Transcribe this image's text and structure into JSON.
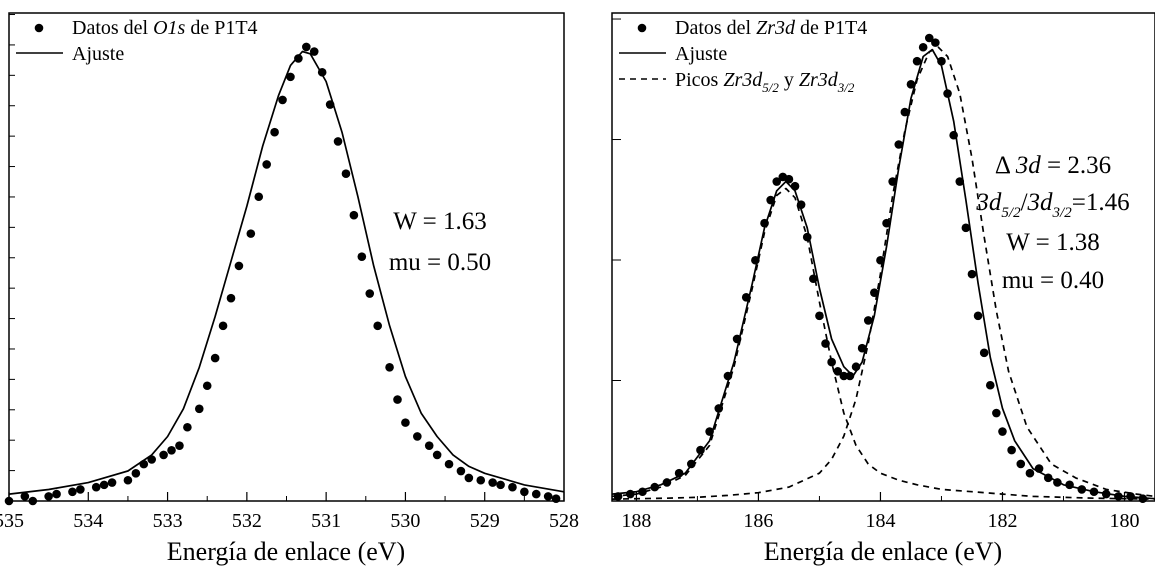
{
  "chart_data": [
    {
      "type": "scatter",
      "title": "",
      "xlabel": "Energía de enlace (eV)",
      "ylabel": "",
      "xlim": [
        535,
        528
      ],
      "ylim": [
        0,
        1.0
      ],
      "x_reversed": true,
      "xticks": [
        535,
        534,
        533,
        532,
        531,
        530,
        529,
        528
      ],
      "xtick_labels": [
        "535",
        "534",
        "533",
        "532",
        "531",
        "530",
        "529",
        "528"
      ],
      "legend": {
        "placement": "top-left",
        "entries": [
          {
            "kind": "dots",
            "pre": "Datos del ",
            "ital": "O1s",
            "post": " de P1T4"
          },
          {
            "kind": "solid",
            "pre": "Ajuste"
          }
        ]
      },
      "annotations": [
        "W = 1.63",
        "mu = 0.50"
      ],
      "series": [
        {
          "name": "Datos del O1s de P1T4",
          "kind": "points",
          "x": [
            535.0,
            534.8,
            534.7,
            534.5,
            534.4,
            534.2,
            534.1,
            533.9,
            533.8,
            533.7,
            533.5,
            533.4,
            533.3,
            533.2,
            533.05,
            532.95,
            532.85,
            532.75,
            532.6,
            532.5,
            532.4,
            532.3,
            532.2,
            532.1,
            531.95,
            531.85,
            531.75,
            531.65,
            531.55,
            531.45,
            531.35,
            531.25,
            531.15,
            531.05,
            530.95,
            530.85,
            530.75,
            530.65,
            530.55,
            530.45,
            530.35,
            530.2,
            530.1,
            530.0,
            529.85,
            529.7,
            529.6,
            529.45,
            529.3,
            529.2,
            529.05,
            528.9,
            528.8,
            528.65,
            528.5,
            528.35,
            528.2,
            528.1
          ],
          "y": [
            0.0,
            0.01,
            0.0,
            0.01,
            0.015,
            0.02,
            0.025,
            0.03,
            0.035,
            0.04,
            0.045,
            0.06,
            0.08,
            0.09,
            0.1,
            0.11,
            0.12,
            0.16,
            0.2,
            0.25,
            0.31,
            0.38,
            0.44,
            0.51,
            0.58,
            0.66,
            0.73,
            0.8,
            0.87,
            0.92,
            0.96,
            0.985,
            0.975,
            0.93,
            0.86,
            0.78,
            0.71,
            0.62,
            0.53,
            0.45,
            0.38,
            0.29,
            0.22,
            0.17,
            0.14,
            0.12,
            0.1,
            0.08,
            0.065,
            0.05,
            0.045,
            0.04,
            0.035,
            0.03,
            0.02,
            0.015,
            0.01,
            0.005
          ]
        },
        {
          "name": "Ajuste",
          "kind": "solid",
          "x": [
            535.0,
            534.5,
            534.0,
            533.5,
            533.2,
            533.0,
            532.8,
            532.6,
            532.4,
            532.2,
            532.0,
            531.8,
            531.6,
            531.45,
            531.3,
            531.2,
            531.0,
            530.8,
            530.6,
            530.4,
            530.2,
            530.0,
            529.8,
            529.6,
            529.4,
            529.2,
            529.0,
            528.5,
            528.0
          ],
          "y": [
            0.015,
            0.025,
            0.04,
            0.065,
            0.1,
            0.14,
            0.2,
            0.29,
            0.4,
            0.52,
            0.64,
            0.77,
            0.88,
            0.945,
            0.975,
            0.97,
            0.91,
            0.8,
            0.66,
            0.51,
            0.38,
            0.27,
            0.19,
            0.14,
            0.1,
            0.075,
            0.06,
            0.035,
            0.02
          ]
        }
      ]
    },
    {
      "type": "scatter",
      "title": "",
      "xlabel": "Energía de enlace (eV)",
      "ylabel": "",
      "xlim": [
        188.4,
        179.5
      ],
      "ylim": [
        0,
        1.0
      ],
      "x_reversed": true,
      "xticks": [
        188,
        186,
        184,
        182,
        180
      ],
      "xtick_labels": [
        "188",
        "186",
        "184",
        "182",
        "180"
      ],
      "legend": {
        "placement": "top-left",
        "entries": [
          {
            "kind": "dots",
            "pre": "Datos del ",
            "ital": "Zr3d",
            "post": " de P1T4"
          },
          {
            "kind": "solid",
            "pre": "Ajuste"
          },
          {
            "kind": "dashed",
            "pre": "Picos ",
            "ital": "Zr3d",
            "sub": "5/2",
            "post": " y ",
            "ital2": "Zr3d",
            "sub2": "3/2"
          }
        ]
      },
      "annotations": [
        "Δ 3d = 2.36",
        "3d5/2/3d3/2=1.46",
        "W = 1.38",
        "mu = 0.40"
      ],
      "series": [
        {
          "name": "Datos del Zr3d de P1T4",
          "kind": "points",
          "x": [
            188.3,
            188.1,
            187.9,
            187.7,
            187.5,
            187.3,
            187.1,
            186.95,
            186.8,
            186.65,
            186.5,
            186.35,
            186.2,
            186.05,
            185.9,
            185.8,
            185.7,
            185.6,
            185.5,
            185.4,
            185.3,
            185.2,
            185.1,
            185.0,
            184.9,
            184.8,
            184.7,
            184.6,
            184.5,
            184.4,
            184.3,
            184.2,
            184.1,
            184.0,
            183.9,
            183.8,
            183.7,
            183.6,
            183.5,
            183.4,
            183.3,
            183.2,
            183.1,
            183.0,
            182.9,
            182.8,
            182.7,
            182.6,
            182.5,
            182.4,
            182.3,
            182.2,
            182.1,
            182.0,
            181.85,
            181.7,
            181.55,
            181.4,
            181.25,
            181.1,
            180.9,
            180.7,
            180.5,
            180.3,
            180.1,
            179.9,
            179.7
          ],
          "y": [
            0.01,
            0.015,
            0.02,
            0.03,
            0.04,
            0.06,
            0.08,
            0.11,
            0.15,
            0.2,
            0.27,
            0.35,
            0.44,
            0.52,
            0.6,
            0.65,
            0.69,
            0.7,
            0.695,
            0.68,
            0.64,
            0.57,
            0.48,
            0.4,
            0.34,
            0.3,
            0.28,
            0.27,
            0.27,
            0.29,
            0.33,
            0.39,
            0.45,
            0.52,
            0.6,
            0.69,
            0.77,
            0.84,
            0.9,
            0.95,
            0.98,
            1.0,
            0.99,
            0.95,
            0.88,
            0.79,
            0.69,
            0.59,
            0.49,
            0.4,
            0.32,
            0.25,
            0.19,
            0.15,
            0.11,
            0.08,
            0.06,
            0.07,
            0.05,
            0.04,
            0.035,
            0.025,
            0.02,
            0.015,
            0.01,
            0.01,
            0.005
          ]
        },
        {
          "name": "Ajuste",
          "kind": "solid",
          "x": [
            188.4,
            188.0,
            187.6,
            187.2,
            186.8,
            186.4,
            186.1,
            185.9,
            185.7,
            185.55,
            185.4,
            185.2,
            185.0,
            184.8,
            184.6,
            184.45,
            184.3,
            184.1,
            183.9,
            183.7,
            183.5,
            183.3,
            183.15,
            183.0,
            182.8,
            182.6,
            182.4,
            182.2,
            182.0,
            181.8,
            181.5,
            181.0,
            180.5,
            180.0,
            179.5
          ],
          "y": [
            0.015,
            0.02,
            0.035,
            0.06,
            0.13,
            0.3,
            0.47,
            0.59,
            0.67,
            0.69,
            0.67,
            0.59,
            0.46,
            0.35,
            0.29,
            0.27,
            0.3,
            0.4,
            0.55,
            0.72,
            0.87,
            0.96,
            0.975,
            0.94,
            0.82,
            0.65,
            0.47,
            0.31,
            0.2,
            0.13,
            0.07,
            0.035,
            0.02,
            0.01,
            0.005
          ]
        },
        {
          "name": "Zr3d5/2",
          "kind": "dashed",
          "x": [
            188.4,
            188.0,
            187.6,
            187.2,
            186.8,
            186.4,
            186.1,
            185.9,
            185.7,
            185.55,
            185.4,
            185.2,
            185.0,
            184.8,
            184.6,
            184.4,
            184.2,
            184.0,
            183.7,
            183.4,
            183.0,
            182.5,
            182.0,
            181.5,
            181.0,
            180.5,
            180.0,
            179.5
          ],
          "y": [
            0.01,
            0.015,
            0.03,
            0.055,
            0.12,
            0.29,
            0.46,
            0.58,
            0.66,
            0.675,
            0.655,
            0.57,
            0.43,
            0.3,
            0.19,
            0.12,
            0.08,
            0.06,
            0.045,
            0.035,
            0.025,
            0.02,
            0.015,
            0.01,
            0.008,
            0.006,
            0.005,
            0.004
          ]
        },
        {
          "name": "Zr3d3/2",
          "kind": "dashed",
          "x": [
            188.4,
            188.0,
            187.5,
            187.0,
            186.5,
            186.0,
            185.5,
            185.0,
            184.8,
            184.6,
            184.4,
            184.2,
            184.0,
            183.8,
            183.6,
            183.4,
            183.2,
            183.05,
            182.9,
            182.7,
            182.5,
            182.3,
            182.1,
            181.9,
            181.6,
            181.2,
            180.8,
            180.3,
            179.8,
            179.5
          ],
          "y": [
            0.004,
            0.005,
            0.006,
            0.008,
            0.012,
            0.018,
            0.03,
            0.06,
            0.09,
            0.14,
            0.22,
            0.34,
            0.49,
            0.66,
            0.8,
            0.91,
            0.97,
            0.98,
            0.96,
            0.88,
            0.74,
            0.57,
            0.41,
            0.28,
            0.16,
            0.08,
            0.05,
            0.025,
            0.015,
            0.01
          ]
        }
      ]
    }
  ]
}
